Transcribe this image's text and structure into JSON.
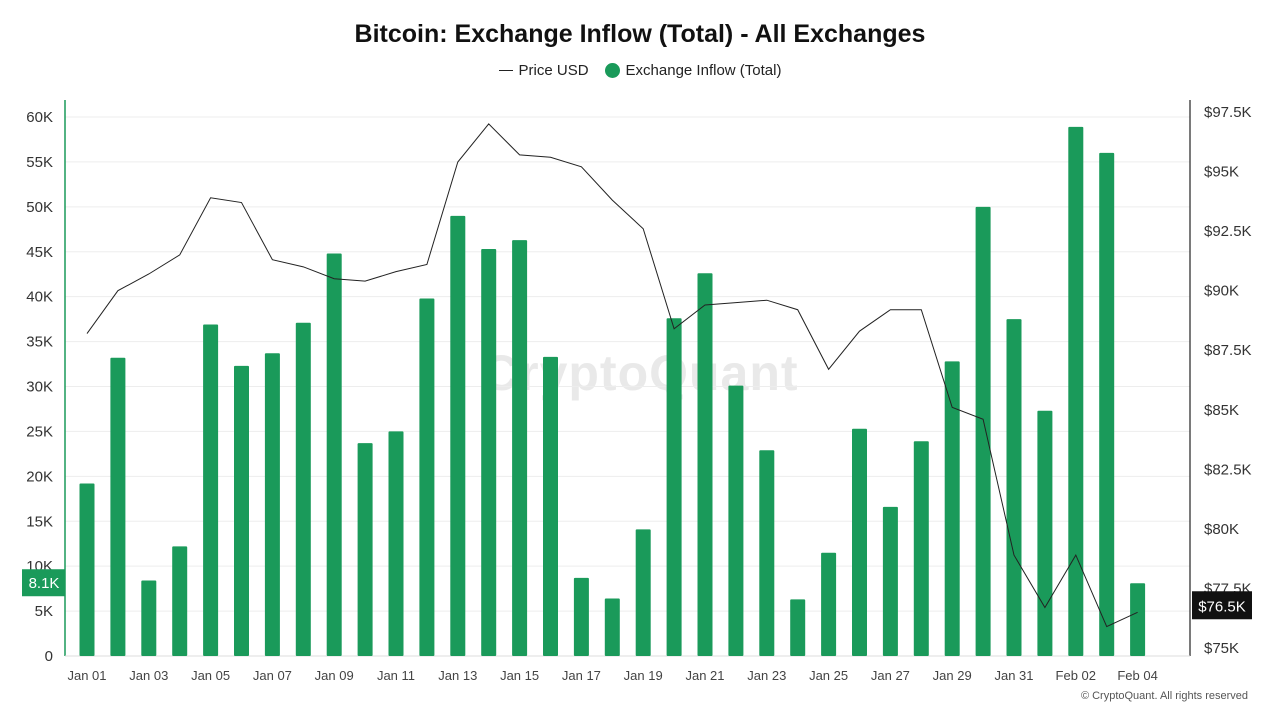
{
  "title": "Bitcoin: Exchange Inflow (Total) - All Exchanges",
  "watermark": "CryptoQuant",
  "copyright": "© CryptoQuant. All rights reserved",
  "colors": {
    "bar": "#1a9a5a",
    "price_line": "#222222",
    "last_price_tag": "#111111"
  },
  "legend": [
    {
      "label": "Price USD",
      "icon": "line-icon"
    },
    {
      "label": "Exchange Inflow (Total)",
      "icon": "dot-icon"
    }
  ],
  "chart_data": {
    "type": "bar",
    "categories": [
      "Jan 01",
      "Jan 02",
      "Jan 03",
      "Jan 04",
      "Jan 05",
      "Jan 06",
      "Jan 07",
      "Jan 08",
      "Jan 09",
      "Jan 10",
      "Jan 11",
      "Jan 12",
      "Jan 13",
      "Jan 14",
      "Jan 15",
      "Jan 16",
      "Jan 17",
      "Jan 18",
      "Jan 19",
      "Jan 20",
      "Jan 21",
      "Jan 22",
      "Jan 23",
      "Jan 24",
      "Jan 25",
      "Jan 26",
      "Jan 27",
      "Jan 28",
      "Jan 29",
      "Jan 30",
      "Jan 31",
      "Feb 01",
      "Feb 02",
      "Feb 03",
      "Feb 04"
    ],
    "x_tick_labels": [
      "Jan 01",
      "Jan 03",
      "Jan 05",
      "Jan 07",
      "Jan 09",
      "Jan 11",
      "Jan 13",
      "Jan 15",
      "Jan 17",
      "Jan 19",
      "Jan 21",
      "Jan 23",
      "Jan 25",
      "Jan 27",
      "Jan 29",
      "Jan 31",
      "Feb 02",
      "Feb 04"
    ],
    "series": [
      {
        "name": "Exchange Inflow (Total)",
        "axis": "left",
        "values": [
          19200,
          33200,
          8400,
          12200,
          36900,
          32300,
          33700,
          37100,
          44800,
          23700,
          25000,
          39800,
          49000,
          45300,
          46300,
          33300,
          8700,
          6400,
          14100,
          37600,
          42600,
          30100,
          22900,
          6300,
          11500,
          25300,
          16600,
          23900,
          32800,
          50000,
          37500,
          27300,
          58900,
          56000,
          8100
        ]
      },
      {
        "name": "Price USD",
        "axis": "right",
        "values": [
          88200,
          90000,
          90700,
          91500,
          93900,
          93700,
          91300,
          91000,
          90500,
          90400,
          90800,
          91100,
          95400,
          97000,
          95700,
          95600,
          95200,
          93800,
          92600,
          88400,
          89400,
          89500,
          89600,
          89200,
          86700,
          88300,
          89200,
          89200,
          85100,
          84600,
          78900,
          76700,
          78900,
          75900,
          76500
        ]
      }
    ],
    "y_left": {
      "ticks": [
        "0",
        "5K",
        "10K",
        "15K",
        "20K",
        "25K",
        "30K",
        "35K",
        "40K",
        "45K",
        "50K",
        "55K",
        "60K"
      ],
      "range": [
        0,
        60000
      ]
    },
    "y_right": {
      "ticks": [
        "$75K",
        "$77.5K",
        "$80K",
        "$82.5K",
        "$85K",
        "$87.5K",
        "$90K",
        "$92.5K",
        "$95K",
        "$97.5K"
      ],
      "range": [
        75000,
        97500
      ]
    },
    "last_inflow_label": "8.1K",
    "last_price_label": "$76.5K",
    "grid": true
  }
}
